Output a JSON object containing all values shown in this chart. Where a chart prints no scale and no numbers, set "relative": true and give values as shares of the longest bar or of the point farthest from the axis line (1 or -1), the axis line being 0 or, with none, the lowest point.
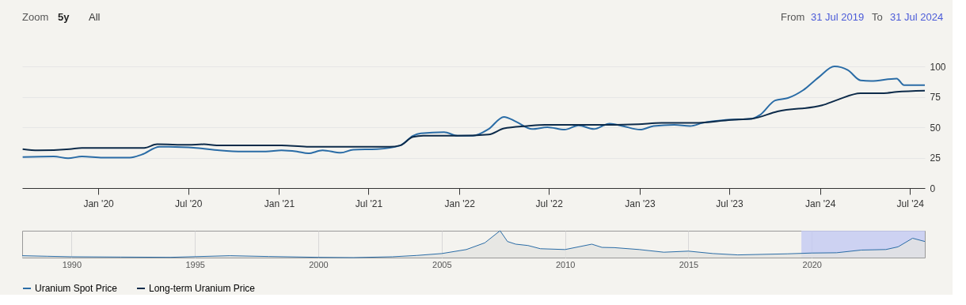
{
  "chart_data": [
    {
      "type": "line",
      "annotations": [
        "Zoom",
        "5y",
        "All",
        "From",
        "31 Jul 2019",
        "To",
        "31 Jul 2024"
      ],
      "xlim": [
        "2019-07-31",
        "2024-07-31"
      ],
      "xticks": [
        {
          "value": "2020-01-01",
          "label": "Jan '20"
        },
        {
          "value": "2020-07-01",
          "label": "Jul '20"
        },
        {
          "value": "2021-01-01",
          "label": "Jan '21"
        },
        {
          "value": "2021-07-01",
          "label": "Jul '21"
        },
        {
          "value": "2022-01-01",
          "label": "Jan '22"
        },
        {
          "value": "2022-07-01",
          "label": "Jul '22"
        },
        {
          "value": "2023-01-01",
          "label": "Jan '23"
        },
        {
          "value": "2023-07-01",
          "label": "Jul '23"
        },
        {
          "value": "2024-01-01",
          "label": "Jan '24"
        },
        {
          "value": "2024-07-01",
          "label": "Jul '24"
        }
      ],
      "ylim": [
        0,
        100
      ],
      "yticks": [
        0,
        25,
        50,
        75,
        100
      ],
      "grid": "y",
      "legend": "bottom",
      "series": [
        {
          "name": "Uranium Spot Price",
          "color": "#2a6ca6",
          "x": [
            "2019-08-01",
            "2019-10-03",
            "2019-11-01",
            "2019-11-29",
            "2020-01-10",
            "2020-03-05",
            "2020-03-29",
            "2020-05-04",
            "2020-05-23",
            "2020-07-17",
            "2020-09-02",
            "2020-10-19",
            "2020-12-05",
            "2021-01-06",
            "2021-02-06",
            "2021-03-01",
            "2021-03-30",
            "2021-05-06",
            "2021-05-31",
            "2021-07-18",
            "2021-09-03",
            "2021-09-29",
            "2021-10-15",
            "2021-12-01",
            "2021-12-28",
            "2022-01-28",
            "2022-03-01",
            "2022-04-01",
            "2022-04-26",
            "2022-05-28",
            "2022-06-28",
            "2022-08-02",
            "2022-08-30",
            "2022-09-30",
            "2022-11-01",
            "2022-11-27",
            "2023-01-02",
            "2023-01-29",
            "2023-03-12",
            "2023-04-13",
            "2023-05-08",
            "2023-06-24",
            "2023-08-16",
            "2023-09-01",
            "2023-10-02",
            "2023-10-28",
            "2023-11-28",
            "2023-12-29",
            "2024-01-30",
            "2024-02-26",
            "2024-03-23",
            "2024-04-13",
            "2024-06-04",
            "2024-06-19",
            "2024-07-31"
          ],
          "values": [
            25.5,
            26,
            24.5,
            26,
            25,
            25,
            27.5,
            34,
            34,
            33,
            31,
            30,
            30,
            31,
            30,
            28.5,
            31,
            29,
            31.5,
            32,
            35,
            43,
            45,
            46,
            43,
            43,
            48.5,
            58.5,
            54.5,
            48.5,
            50,
            48,
            51.5,
            48.5,
            53,
            51,
            48,
            51,
            52,
            51,
            53.5,
            56,
            57,
            60,
            72,
            74,
            80.5,
            91,
            100,
            97,
            88.5,
            88,
            90,
            84.5,
            84.5
          ]
        },
        {
          "name": "Long-term Uranium Price",
          "color": "#0d2b4a",
          "x": [
            "2019-08-01",
            "2019-09-01",
            "2019-11-04",
            "2019-11-29",
            "2020-04-03",
            "2020-04-29",
            "2020-07-01",
            "2020-08-02",
            "2020-08-28",
            "2021-01-06",
            "2021-02-26",
            "2021-08-13",
            "2021-09-03",
            "2021-09-29",
            "2021-10-20",
            "2021-12-28",
            "2022-03-01",
            "2022-04-01",
            "2022-05-18",
            "2022-06-23",
            "2022-08-14",
            "2022-11-01",
            "2022-12-29",
            "2023-02-14",
            "2023-04-22",
            "2023-07-05",
            "2023-08-16",
            "2023-10-07",
            "2024-01-05",
            "2024-02-05",
            "2024-03-23",
            "2024-05-09",
            "2024-06-04",
            "2024-07-31"
          ],
          "values": [
            32,
            31,
            32,
            33,
            33,
            36,
            35.5,
            36,
            35,
            35,
            34,
            34,
            35,
            42,
            43,
            43,
            44,
            49,
            51,
            52,
            52,
            52,
            52.5,
            53.5,
            53.5,
            56,
            57,
            63,
            68,
            72.5,
            78,
            78,
            79,
            80
          ]
        }
      ]
    },
    {
      "type": "area",
      "relative": true,
      "grid": "x",
      "xlim": [
        "1988-01-01",
        "2024-07-31"
      ],
      "xticks": [
        {
          "value": "1990-01-01",
          "label": "1990"
        },
        {
          "value": "1995-01-01",
          "label": "1995"
        },
        {
          "value": "2000-01-01",
          "label": "2000"
        },
        {
          "value": "2005-01-01",
          "label": "2005"
        },
        {
          "value": "2010-01-01",
          "label": "2010"
        },
        {
          "value": "2015-01-01",
          "label": "2015"
        },
        {
          "value": "2020-01-01",
          "label": "2020"
        }
      ],
      "bands": [
        {
          "axis": "x",
          "from": "2019-07-31",
          "to": "2024-07-31",
          "color": "#c3c9f2"
        }
      ],
      "series": [
        {
          "color": "#2a6ca6",
          "x": [
            "1988-01-01",
            "1989-01-01",
            "1990-01-01",
            "1992-01-01",
            "1994-01-01",
            "1996-06-01",
            "1998-01-01",
            "2000-01-01",
            "2001-06-01",
            "2003-01-01",
            "2004-01-01",
            "2005-01-01",
            "2006-01-01",
            "2006-10-01",
            "2007-05-15",
            "2007-09-01",
            "2008-01-01",
            "2008-07-01",
            "2009-01-01",
            "2010-01-01",
            "2011-02-01",
            "2011-07-01",
            "2012-01-01",
            "2013-01-01",
            "2014-01-01",
            "2015-01-01",
            "2016-01-01",
            "2017-01-01",
            "2018-01-01",
            "2019-01-01",
            "2020-01-01",
            "2021-01-01",
            "2022-01-01",
            "2023-01-01",
            "2023-07-01",
            "2024-02-01",
            "2024-07-31"
          ],
          "values": [
            0.07,
            0.05,
            0.03,
            0.02,
            0.01,
            0.07,
            0.04,
            0.01,
            0,
            0.03,
            0.08,
            0.15,
            0.3,
            0.55,
            1,
            0.6,
            0.5,
            0.45,
            0.33,
            0.3,
            0.5,
            0.38,
            0.37,
            0.3,
            0.2,
            0.24,
            0.15,
            0.1,
            0.12,
            0.14,
            0.17,
            0.18,
            0.28,
            0.3,
            0.4,
            0.72,
            0.6
          ]
        }
      ]
    }
  ]
}
